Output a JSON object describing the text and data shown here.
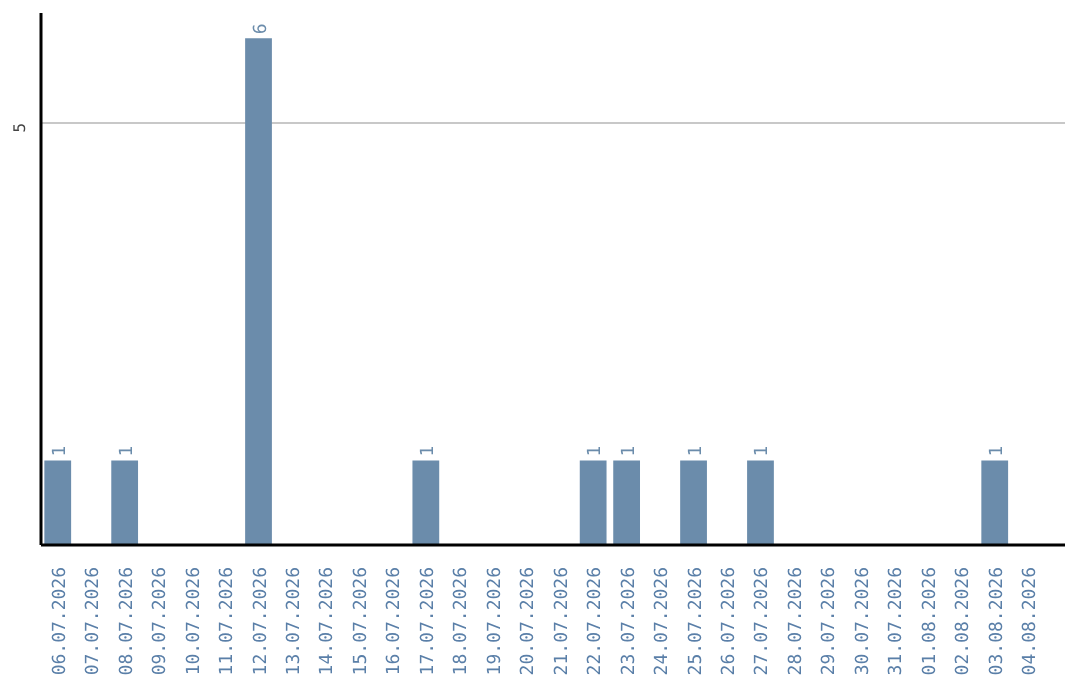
{
  "chart_data": {
    "type": "bar",
    "categories": [
      "06.07.2026",
      "07.07.2026",
      "08.07.2026",
      "09.07.2026",
      "10.07.2026",
      "11.07.2026",
      "12.07.2026",
      "13.07.2026",
      "14.07.2026",
      "15.07.2026",
      "16.07.2026",
      "17.07.2026",
      "18.07.2026",
      "19.07.2026",
      "20.07.2026",
      "21.07.2026",
      "22.07.2026",
      "23.07.2026",
      "24.07.2026",
      "25.07.2026",
      "26.07.2026",
      "27.07.2026",
      "28.07.2026",
      "29.07.2026",
      "30.07.2026",
      "31.07.2026",
      "01.08.2026",
      "02.08.2026",
      "03.08.2026",
      "04.08.2026"
    ],
    "values": [
      1,
      0,
      1,
      0,
      0,
      0,
      6,
      0,
      0,
      0,
      0,
      1,
      0,
      0,
      0,
      0,
      1,
      1,
      0,
      1,
      0,
      1,
      0,
      0,
      0,
      0,
      0,
      0,
      1,
      0
    ],
    "value_labels": [
      "1",
      null,
      "1",
      null,
      null,
      null,
      "6",
      null,
      null,
      null,
      null,
      "1",
      null,
      null,
      null,
      null,
      "1",
      "1",
      null,
      "1",
      null,
      "1",
      null,
      null,
      null,
      null,
      null,
      null,
      "1",
      null
    ],
    "color": "#6b8cab",
    "ylim": [
      0,
      6.3
    ],
    "yticks": [
      5
    ],
    "grid": "y"
  }
}
